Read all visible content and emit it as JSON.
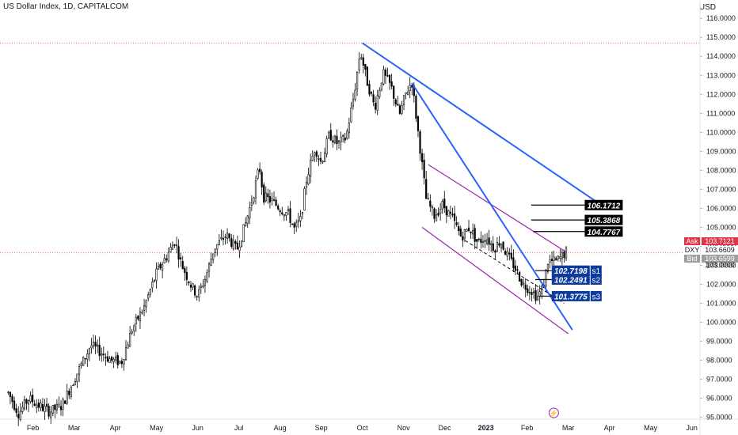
{
  "header": {
    "symbol_title": "US Dollar Index, 1D, CAPITALCOM",
    "currency": "USD"
  },
  "colors": {
    "bull": "#ffffff",
    "bear": "#000000",
    "trendline": "#2962ff",
    "channel": "#9c27b0",
    "label_black": "#000000",
    "label_blue": "#0d3b9c",
    "ask": "#e0364a",
    "dxy_text": "#131722",
    "bid": "#9e9e9e",
    "hline": "#e57373"
  },
  "chart_data": {
    "type": "candlestick",
    "title": "US Dollar Index, 1D, CAPITALCOM",
    "y_unit": "USD",
    "ylim": [
      94.9,
      116.3
    ],
    "y_ticks": [
      "95.0000",
      "96.0000",
      "97.0000",
      "98.0000",
      "99.0000",
      "100.0000",
      "101.0000",
      "102.0000",
      "103.0000",
      "104.0000",
      "105.0000",
      "106.0000",
      "107.0000",
      "108.0000",
      "109.0000",
      "110.0000",
      "111.0000",
      "112.0000",
      "113.0000",
      "114.0000",
      "115.0000",
      "116.0000"
    ],
    "x_ticks": [
      {
        "label": "Feb",
        "x": 0.6
      },
      {
        "label": "Mar",
        "x": 1.6
      },
      {
        "label": "Apr",
        "x": 2.6
      },
      {
        "label": "May",
        "x": 3.6
      },
      {
        "label": "Jun",
        "x": 4.6
      },
      {
        "label": "Jul",
        "x": 5.6
      },
      {
        "label": "Aug",
        "x": 6.6
      },
      {
        "label": "Sep",
        "x": 7.6
      },
      {
        "label": "Oct",
        "x": 8.6
      },
      {
        "label": "Nov",
        "x": 9.6
      },
      {
        "label": "Dec",
        "x": 10.6
      },
      {
        "label": "2023",
        "x": 11.6,
        "bold": true
      },
      {
        "label": "Feb",
        "x": 12.6
      },
      {
        "label": "Mar",
        "x": 13.6
      },
      {
        "label": "Apr",
        "x": 14.6
      },
      {
        "label": "May",
        "x": 15.6
      },
      {
        "label": "Jun",
        "x": 16.6
      }
    ],
    "xlim": [
      -0.2,
      16.8
    ],
    "price_path": [
      [
        0.0,
        96.3
      ],
      [
        0.25,
        95.2
      ],
      [
        0.5,
        96.0
      ],
      [
        0.75,
        95.6
      ],
      [
        1.0,
        95.3
      ],
      [
        1.3,
        95.6
      ],
      [
        1.6,
        97.0
      ],
      [
        1.9,
        98.3
      ],
      [
        2.0,
        98.8
      ],
      [
        2.2,
        98.5
      ],
      [
        2.5,
        98.0
      ],
      [
        2.75,
        97.9
      ],
      [
        3.0,
        99.6
      ],
      [
        3.3,
        100.8
      ],
      [
        3.6,
        102.6
      ],
      [
        3.85,
        103.5
      ],
      [
        4.05,
        104.3
      ],
      [
        4.2,
        103.1
      ],
      [
        4.45,
        101.9
      ],
      [
        4.6,
        101.4
      ],
      [
        4.8,
        102.4
      ],
      [
        5.0,
        103.9
      ],
      [
        5.3,
        104.6
      ],
      [
        5.55,
        103.8
      ],
      [
        5.75,
        105.1
      ],
      [
        5.95,
        106.7
      ],
      [
        6.1,
        108.2
      ],
      [
        6.2,
        106.6
      ],
      [
        6.4,
        106.4
      ],
      [
        6.6,
        106.0
      ],
      [
        6.8,
        105.7
      ],
      [
        6.95,
        104.9
      ],
      [
        7.1,
        105.4
      ],
      [
        7.25,
        107.6
      ],
      [
        7.45,
        109.2
      ],
      [
        7.6,
        108.4
      ],
      [
        7.8,
        109.9
      ],
      [
        8.0,
        109.4
      ],
      [
        8.2,
        109.7
      ],
      [
        8.4,
        112.0
      ],
      [
        8.55,
        114.3
      ],
      [
        8.7,
        112.8
      ],
      [
        8.9,
        111.3
      ],
      [
        9.1,
        113.1
      ],
      [
        9.3,
        112.4
      ],
      [
        9.5,
        110.9
      ],
      [
        9.65,
        112.0
      ],
      [
        9.8,
        112.7
      ],
      [
        10.0,
        109.2
      ],
      [
        10.15,
        106.5
      ],
      [
        10.35,
        105.6
      ],
      [
        10.55,
        106.2
      ],
      [
        10.8,
        105.4
      ],
      [
        11.0,
        104.5
      ],
      [
        11.2,
        105.0
      ],
      [
        11.4,
        104.2
      ],
      [
        11.6,
        104.5
      ],
      [
        11.8,
        103.9
      ],
      [
        11.95,
        104.3
      ],
      [
        12.1,
        103.6
      ],
      [
        12.3,
        102.9
      ],
      [
        12.5,
        102.0
      ],
      [
        12.7,
        101.7
      ],
      [
        12.85,
        101.3
      ],
      [
        13.0,
        101.9
      ],
      [
        13.1,
        103.2
      ],
      [
        13.3,
        103.2
      ],
      [
        13.45,
        103.5
      ],
      [
        13.55,
        103.7
      ]
    ],
    "trendlines": [
      {
        "from": [
          8.6,
          114.7
        ],
        "to": [
          14.25,
          106.4
        ]
      },
      {
        "from": [
          9.8,
          112.6
        ],
        "to": [
          13.7,
          99.6
        ]
      }
    ],
    "channel": [
      {
        "from": [
          10.2,
          108.3
        ],
        "to": [
          13.55,
          103.7
        ]
      },
      {
        "from": [
          10.05,
          105.0
        ],
        "to": [
          13.6,
          99.4
        ]
      }
    ],
    "channel_mid": {
      "from": [
        11.1,
        104.3
      ],
      "to": [
        13.5,
        101.0
      ]
    },
    "levels": [
      {
        "value": 106.1712,
        "label": "106.1712",
        "x_start": 12.7,
        "color": "label_black"
      },
      {
        "value": 105.3868,
        "label": "105.3868",
        "x_start": 12.7,
        "color": "label_black"
      },
      {
        "value": 104.7767,
        "label": "104.7767",
        "x_start": 12.75,
        "color": "label_black"
      },
      {
        "value": 102.7198,
        "label": "102.7198",
        "tag": "s1",
        "x_start": 12.8,
        "color": "label_blue"
      },
      {
        "value": 102.2491,
        "label": "102.2491",
        "tag": "s2",
        "x_start": 12.8,
        "color": "label_blue"
      },
      {
        "value": 101.3775,
        "label": "101.3775",
        "tag": "s3",
        "x_start": 12.9,
        "color": "label_blue"
      }
    ],
    "reference_lines": [
      {
        "value": 114.7,
        "style": "dotted"
      },
      {
        "value": 103.66,
        "style": "dotted"
      }
    ],
    "price_labels": {
      "ask_label": "Ask",
      "ask": "103.7121",
      "symbol": "DXY",
      "last": "103.6609",
      "bid_label": "Bid",
      "bid": "103.6599",
      "hidden": "103.0000"
    },
    "event_marker": {
      "x": 13.25,
      "symbol": "⚡"
    }
  }
}
